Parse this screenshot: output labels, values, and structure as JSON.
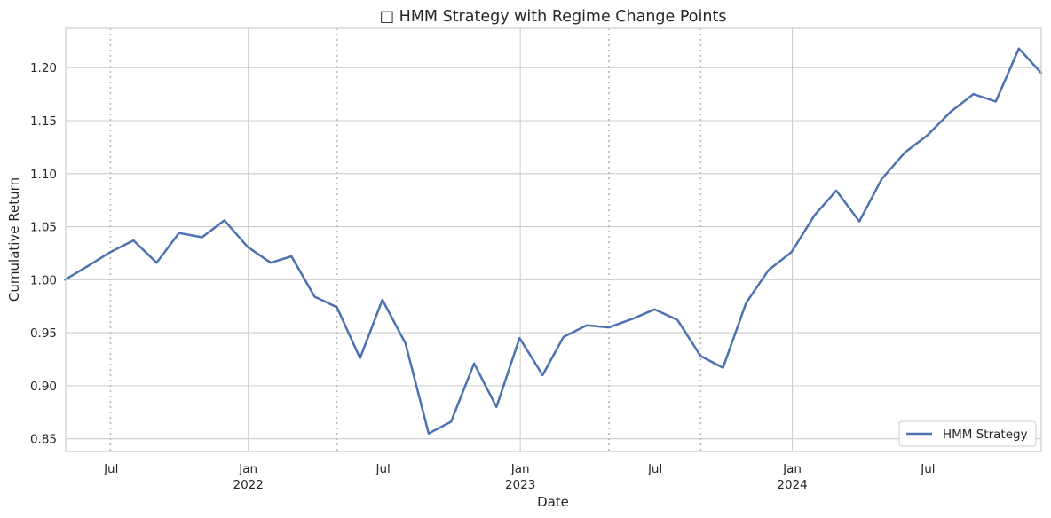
{
  "chart_data": {
    "type": "line",
    "title": "□ HMM Strategy with Regime Change Points",
    "xlabel": "Date",
    "ylabel": "Cumulative Return",
    "ylim": [
      0.838,
      1.237
    ],
    "xlim": [
      "2021-05-01",
      "2024-11-30"
    ],
    "yticks": [
      0.85,
      0.9,
      0.95,
      1.0,
      1.05,
      1.1,
      1.15,
      1.2
    ],
    "ytick_labels": [
      "0.85",
      "0.90",
      "0.95",
      "1.00",
      "1.05",
      "1.10",
      "1.15",
      "1.20"
    ],
    "xticks": [
      {
        "date": "2021-07-01",
        "label": "Jul",
        "year": "",
        "major": false
      },
      {
        "date": "2022-01-01",
        "label": "Jan",
        "year": "2022",
        "major": true
      },
      {
        "date": "2022-07-01",
        "label": "Jul",
        "year": "",
        "major": false
      },
      {
        "date": "2023-01-01",
        "label": "Jan",
        "year": "2023",
        "major": true
      },
      {
        "date": "2023-07-01",
        "label": "Jul",
        "year": "",
        "major": false
      },
      {
        "date": "2024-01-01",
        "label": "Jan",
        "year": "2024",
        "major": true
      },
      {
        "date": "2024-07-01",
        "label": "Jul",
        "year": "",
        "major": false
      }
    ],
    "grid": true,
    "legend_position": "lower-right",
    "regime_change_dates": [
      "2021-06-30",
      "2022-04-30",
      "2023-04-30",
      "2023-08-31"
    ],
    "series": [
      {
        "name": "HMM Strategy",
        "color": "#4c72b0",
        "x": [
          "2021-04-30",
          "2021-05-31",
          "2021-06-30",
          "2021-07-31",
          "2021-08-31",
          "2021-09-30",
          "2021-10-31",
          "2021-11-30",
          "2021-12-31",
          "2022-01-31",
          "2022-02-28",
          "2022-03-31",
          "2022-04-30",
          "2022-05-31",
          "2022-06-30",
          "2022-07-31",
          "2022-08-31",
          "2022-09-30",
          "2022-10-31",
          "2022-11-30",
          "2022-12-31",
          "2023-01-31",
          "2023-02-28",
          "2023-03-31",
          "2023-04-30",
          "2023-05-31",
          "2023-06-30",
          "2023-07-31",
          "2023-08-31",
          "2023-09-30",
          "2023-10-31",
          "2023-11-30",
          "2023-12-31",
          "2024-01-31",
          "2024-02-29",
          "2024-03-31",
          "2024-04-30",
          "2024-05-31",
          "2024-06-30",
          "2024-07-31",
          "2024-08-31",
          "2024-09-30",
          "2024-10-31",
          "2024-11-30"
        ],
        "y": [
          1.0,
          1.013,
          1.026,
          1.037,
          1.016,
          1.044,
          1.04,
          1.056,
          1.031,
          1.016,
          1.022,
          0.984,
          0.974,
          0.926,
          0.981,
          0.94,
          0.855,
          0.866,
          0.921,
          0.88,
          0.945,
          0.91,
          0.946,
          0.957,
          0.955,
          0.963,
          0.972,
          0.962,
          0.928,
          0.917,
          0.978,
          1.009,
          1.026,
          1.061,
          1.084,
          1.055,
          1.095,
          1.12,
          1.136,
          1.158,
          1.175,
          1.168,
          1.218,
          1.195
        ]
      }
    ]
  }
}
